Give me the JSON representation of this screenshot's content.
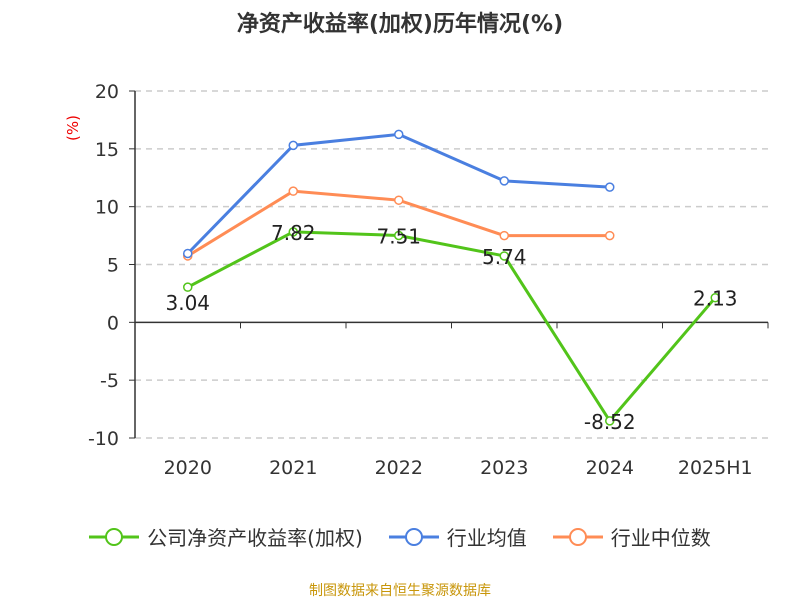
{
  "chart_data": {
    "type": "line",
    "title": "净资产收益率(加权)历年情况(%)",
    "ylabel": "(%)",
    "xlabel": "",
    "categories": [
      "2020",
      "2021",
      "2022",
      "2023",
      "2024",
      "2025H1"
    ],
    "ylim": [
      -10,
      20
    ],
    "yticks": [
      -10,
      -5,
      0,
      5,
      10,
      15,
      20
    ],
    "grid": true,
    "legend_position": "bottom",
    "series": [
      {
        "name": "公司净资产收益率(加权)",
        "color": "#52c41a",
        "values": [
          3.04,
          7.82,
          7.51,
          5.74,
          -8.52,
          2.13
        ],
        "labels": [
          "3.04",
          "7.82",
          "7.51",
          "5.74",
          "-8.52",
          "2.13"
        ]
      },
      {
        "name": "行业均值",
        "color": "#4a7fe0",
        "values": [
          5.95,
          15.3,
          16.25,
          12.23,
          11.69,
          null
        ]
      },
      {
        "name": "行业中位数",
        "color": "#ff8c55",
        "values": [
          5.74,
          11.34,
          10.56,
          7.5,
          7.5,
          null
        ]
      }
    ]
  },
  "source": "制图数据来自恒生聚源数据库"
}
